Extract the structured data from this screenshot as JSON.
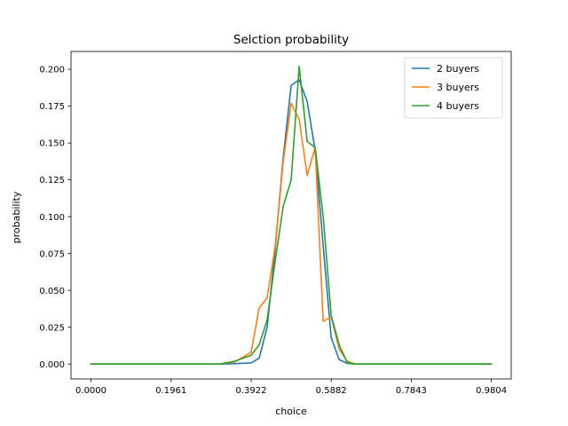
{
  "chart_data": {
    "type": "line",
    "title": "Selction probability",
    "xlabel": "choice",
    "ylabel": "probability",
    "xlim": [
      -0.049,
      1.029
    ],
    "ylim": [
      -0.0101,
      0.2121
    ],
    "xticks": [
      0.0,
      0.1961,
      0.3922,
      0.5882,
      0.7843,
      0.9804
    ],
    "xtick_labels": [
      "0.0000",
      "0.1961",
      "0.3922",
      "0.5882",
      "0.7843",
      "0.9804"
    ],
    "yticks": [
      0.0,
      0.025,
      0.05,
      0.075,
      0.1,
      0.125,
      0.15,
      0.175,
      0.2
    ],
    "ytick_labels": [
      "0.000",
      "0.025",
      "0.050",
      "0.075",
      "0.100",
      "0.125",
      "0.150",
      "0.175",
      "0.200"
    ],
    "grid": false,
    "legend_position": "top-right",
    "series": [
      {
        "name": "2 buyers",
        "color": "#1f77b4",
        "x": [
          0.0,
          0.3137,
          0.3529,
          0.3922,
          0.4118,
          0.4314,
          0.451,
          0.4706,
          0.4902,
          0.5098,
          0.5294,
          0.549,
          0.5686,
          0.5882,
          0.6078,
          0.6275,
          0.6471,
          0.9804
        ],
        "y": [
          0.0,
          0.0,
          0.0003,
          0.0008,
          0.004,
          0.025,
          0.078,
          0.14,
          0.189,
          0.193,
          0.178,
          0.145,
          0.08,
          0.018,
          0.003,
          0.0005,
          0.0,
          0.0
        ]
      },
      {
        "name": "3 buyers",
        "color": "#ff7f0e",
        "x": [
          0.0,
          0.3137,
          0.3529,
          0.3922,
          0.4118,
          0.4314,
          0.451,
          0.4706,
          0.4902,
          0.5098,
          0.5294,
          0.549,
          0.5686,
          0.5882,
          0.6078,
          0.6275,
          0.6471,
          0.9804
        ],
        "y": [
          0.0,
          0.0,
          0.0015,
          0.008,
          0.038,
          0.045,
          0.08,
          0.137,
          0.177,
          0.166,
          0.128,
          0.147,
          0.029,
          0.032,
          0.01,
          0.002,
          0.0,
          0.0
        ]
      },
      {
        "name": "4 buyers",
        "color": "#2ca02c",
        "x": [
          0.0,
          0.3137,
          0.3529,
          0.3922,
          0.4118,
          0.4314,
          0.451,
          0.4706,
          0.4902,
          0.5098,
          0.5294,
          0.549,
          0.5686,
          0.5882,
          0.6078,
          0.6275,
          0.6471,
          0.9804
        ],
        "y": [
          0.0,
          0.0,
          0.002,
          0.006,
          0.013,
          0.03,
          0.07,
          0.107,
          0.125,
          0.202,
          0.151,
          0.147,
          0.1,
          0.033,
          0.013,
          0.001,
          0.0,
          0.0
        ]
      }
    ]
  }
}
